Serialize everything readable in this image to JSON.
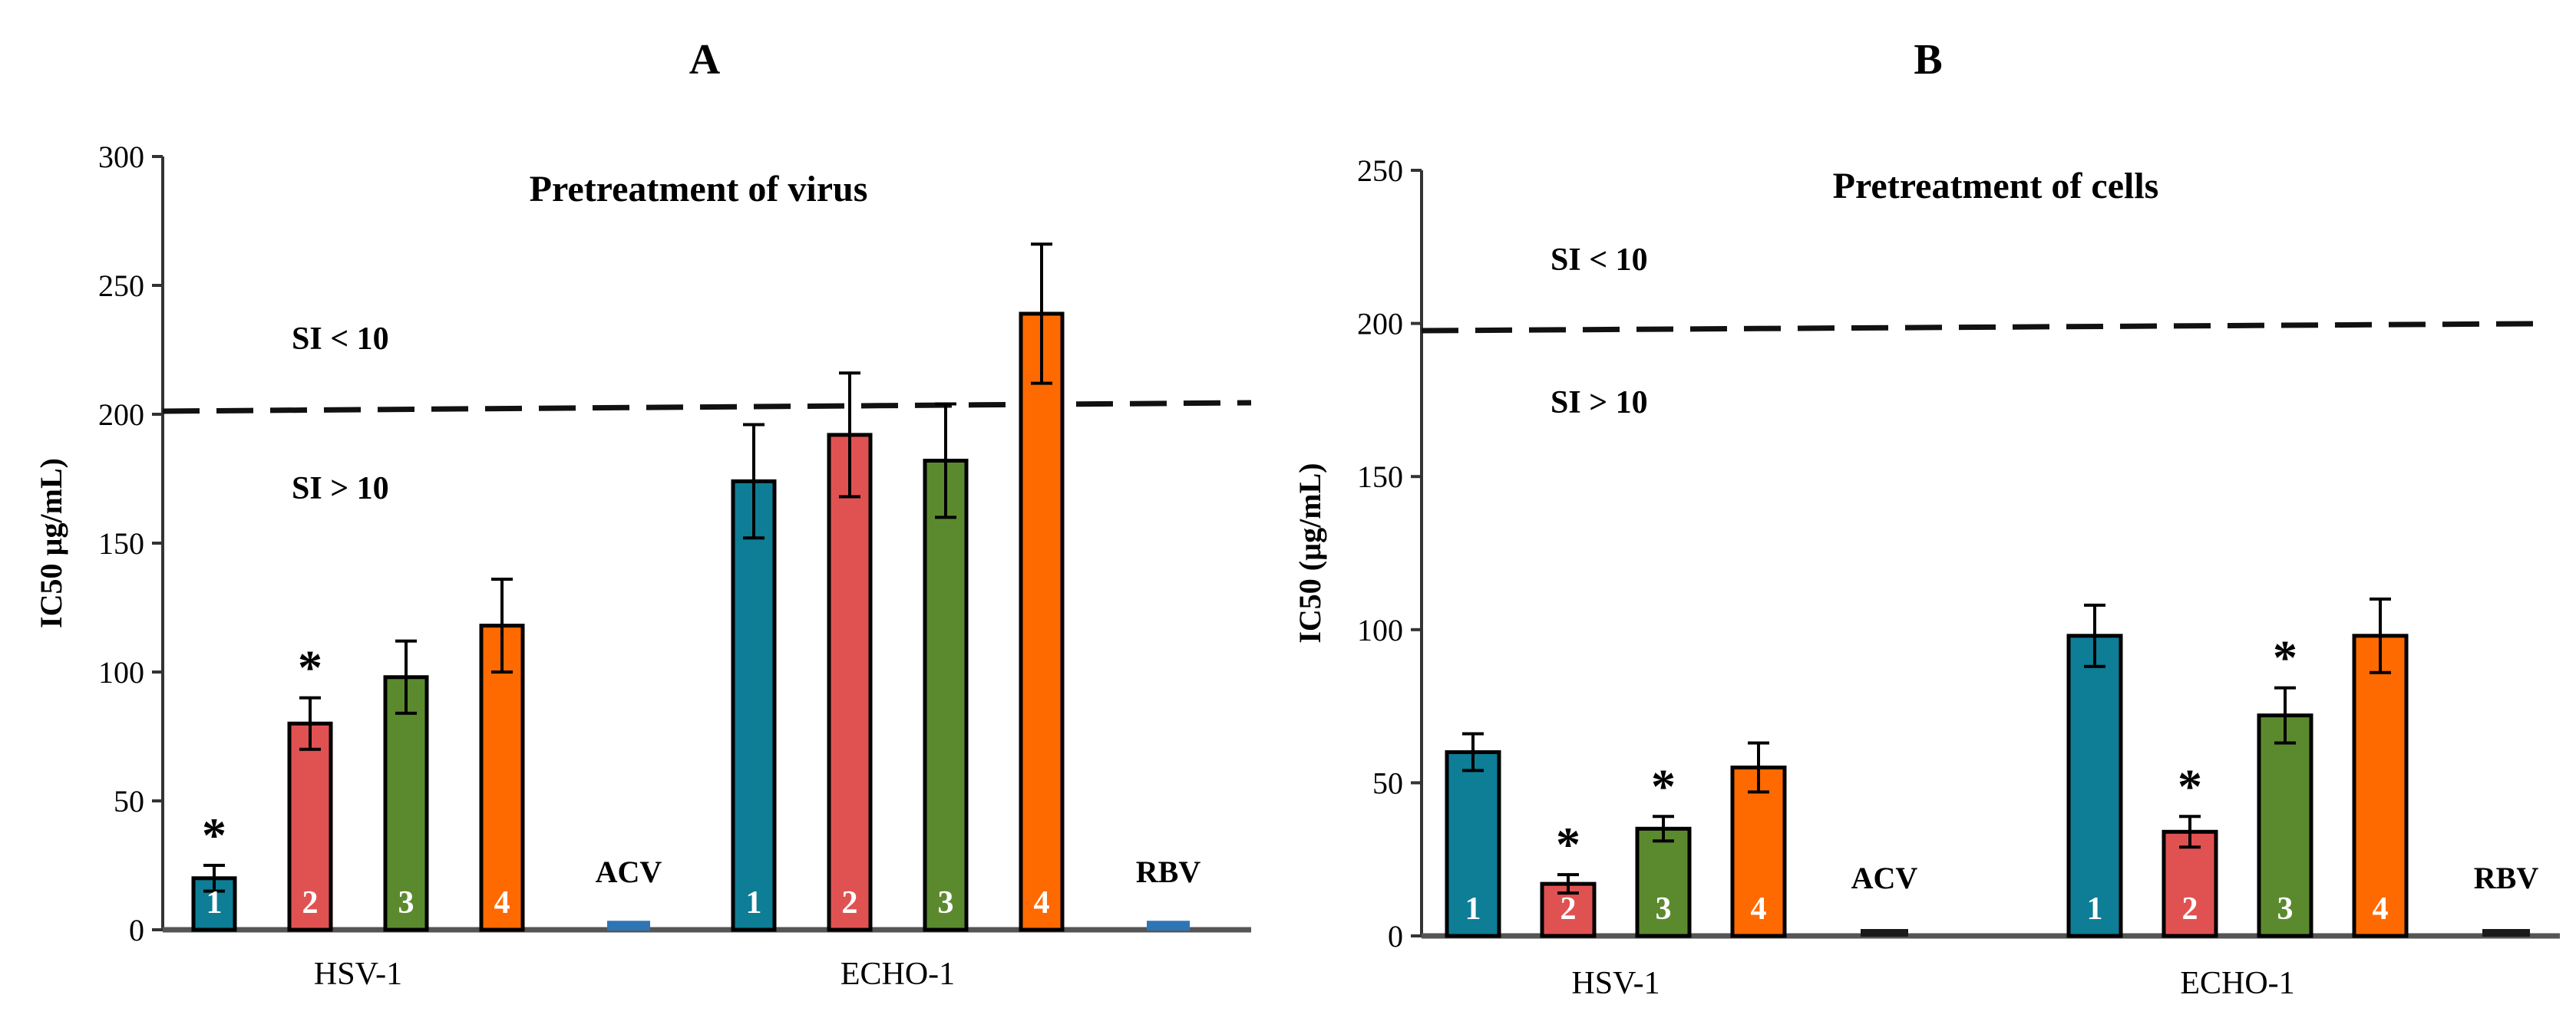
{
  "chart_data": [
    {
      "panel_label": "A",
      "type": "bar",
      "title": "Pretreatment  of virus",
      "ylabel": "IC50  µg/mL)",
      "ylim": [
        0,
        300
      ],
      "yticks": [
        0,
        50,
        100,
        150,
        200,
        250,
        300
      ],
      "threshold": 200,
      "threshold_labels": {
        "above": "SI < 10",
        "below": "SI > 10"
      },
      "groups": [
        {
          "name": "HSV-1",
          "bars": [
            {
              "label": "1",
              "value": 20,
              "error": 5,
              "color": "#0e7d96",
              "star": true
            },
            {
              "label": "2",
              "value": 80,
              "error": 10,
              "color": "#e05252",
              "star": true
            },
            {
              "label": "3",
              "value": 98,
              "error": 14,
              "color": "#5b8a2e",
              "star": false
            },
            {
              "label": "4",
              "value": 118,
              "error": 18,
              "color": "#ff6a00",
              "star": false
            }
          ],
          "control": {
            "label": "ACV",
            "value": 2,
            "color": "#2e75b6"
          }
        },
        {
          "name": "ECHO-1",
          "bars": [
            {
              "label": "1",
              "value": 174,
              "error": 22,
              "color": "#0e7d96",
              "star": false
            },
            {
              "label": "2",
              "value": 192,
              "error": 24,
              "color": "#e05252",
              "star": false
            },
            {
              "label": "3",
              "value": 182,
              "error": 22,
              "color": "#5b8a2e",
              "star": false
            },
            {
              "label": "4",
              "value": 239,
              "error": 27,
              "color": "#ff6a00",
              "star": false
            }
          ],
          "control": {
            "label": "RBV",
            "value": 2,
            "color": "#2e75b6"
          }
        }
      ]
    },
    {
      "panel_label": "B",
      "type": "bar",
      "title": "Pretreatment  of cells",
      "ylabel": "IC50  (µg/mL)",
      "ylim": [
        0,
        250
      ],
      "yticks": [
        0,
        50,
        100,
        150,
        200,
        250
      ],
      "threshold": 200,
      "threshold_labels": {
        "above": "SI < 10",
        "below": "SI > 10"
      },
      "groups": [
        {
          "name": "HSV-1",
          "bars": [
            {
              "label": "1",
              "value": 60,
              "error": 6,
              "color": "#0e7d96",
              "star": false
            },
            {
              "label": "2",
              "value": 17,
              "error": 3,
              "color": "#e05252",
              "star": true
            },
            {
              "label": "3",
              "value": 35,
              "error": 4,
              "color": "#5b8a2e",
              "star": true
            },
            {
              "label": "4",
              "value": 55,
              "error": 8,
              "color": "#ff6a00",
              "star": false
            }
          ],
          "control": {
            "label": "ACV",
            "value": 1,
            "color": "#1a1a1a"
          }
        },
        {
          "name": "ECHO-1",
          "bars": [
            {
              "label": "1",
              "value": 98,
              "error": 10,
              "color": "#0e7d96",
              "star": false
            },
            {
              "label": "2",
              "value": 34,
              "error": 5,
              "color": "#e05252",
              "star": true
            },
            {
              "label": "3",
              "value": 72,
              "error": 9,
              "color": "#5b8a2e",
              "star": true
            },
            {
              "label": "4",
              "value": 98,
              "error": 12,
              "color": "#ff6a00",
              "star": false
            }
          ],
          "control": {
            "label": "RBV",
            "value": 1,
            "color": "#1a1a1a"
          }
        }
      ]
    }
  ]
}
